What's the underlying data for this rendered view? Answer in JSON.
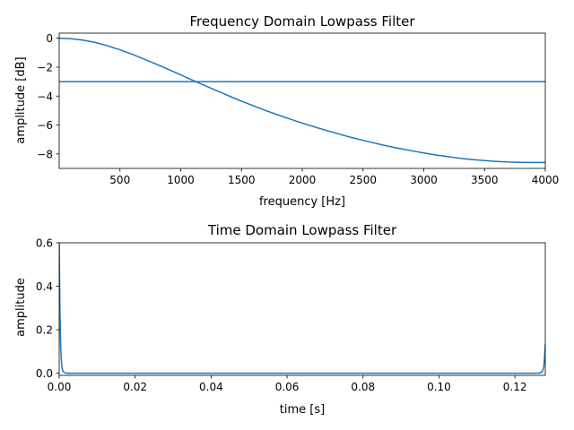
{
  "chart_data": [
    {
      "type": "line",
      "title": "Frequency Domain Lowpass Filter",
      "xlabel": "frequency [Hz]",
      "ylabel": "amplitude [dB]",
      "xlim": [
        0,
        4000
      ],
      "ylim": [
        -9.0,
        0.35
      ],
      "xticks": [
        500,
        1000,
        1500,
        2000,
        2500,
        3000,
        3500,
        4000
      ],
      "yticks": [
        0,
        -2,
        -4,
        -6,
        -8
      ],
      "ytick_labels": [
        "0",
        "−2",
        "−4",
        "−6",
        "−8"
      ],
      "grid": false,
      "series": [
        {
          "color": "#1f77b4",
          "x": [
            0,
            100,
            200,
            300,
            400,
            500,
            600,
            700,
            800,
            900,
            1000,
            1100,
            1200,
            1300,
            1400,
            1500,
            1600,
            1700,
            1800,
            1900,
            2000,
            2100,
            2200,
            2300,
            2400,
            2500,
            2600,
            2700,
            2800,
            2900,
            3000,
            3100,
            3200,
            3300,
            3400,
            3500,
            3600,
            3700,
            3800,
            3900,
            4000
          ],
          "y": [
            0,
            -0.04,
            -0.14,
            -0.3,
            -0.53,
            -0.8,
            -1.11,
            -1.45,
            -1.8,
            -2.16,
            -2.53,
            -2.91,
            -3.28,
            -3.64,
            -4.0,
            -4.35,
            -4.68,
            -5.0,
            -5.3,
            -5.59,
            -5.87,
            -6.13,
            -6.38,
            -6.62,
            -6.85,
            -7.06,
            -7.26,
            -7.45,
            -7.62,
            -7.78,
            -7.93,
            -8.07,
            -8.19,
            -8.3,
            -8.39,
            -8.46,
            -8.52,
            -8.56,
            -8.58,
            -8.59,
            -8.59
          ]
        },
        {
          "color": "#1f77b4",
          "x": [
            0,
            4000
          ],
          "y": [
            -3,
            -3
          ]
        }
      ]
    },
    {
      "type": "line",
      "title": "Time Domain Lowpass Filter",
      "xlabel": "time [s]",
      "ylabel": "amplitude",
      "xlim": [
        0,
        0.128
      ],
      "ylim": [
        -0.01,
        0.6
      ],
      "xticks": [
        0.0,
        0.02,
        0.04,
        0.06,
        0.08,
        0.1,
        0.12
      ],
      "xtick_labels": [
        "0.00",
        "0.02",
        "0.04",
        "0.06",
        "0.08",
        "0.10",
        "0.12"
      ],
      "yticks": [
        0.0,
        0.2,
        0.4,
        0.6
      ],
      "ytick_labels": [
        "0.0",
        "0.2",
        "0.4",
        "0.6"
      ],
      "grid": false,
      "series": [
        {
          "color": "#1f77b4",
          "x": [
            0,
            0.0001,
            0.0002,
            0.0004,
            0.0006,
            0.0008,
            0.001,
            0.0015,
            0.002,
            0.01,
            0.03,
            0.05,
            0.07,
            0.09,
            0.11,
            0.125,
            0.1265,
            0.127,
            0.1273,
            0.1276,
            0.1278,
            0.128
          ],
          "y": [
            0.6,
            0.45,
            0.28,
            0.12,
            0.05,
            0.02,
            0.008,
            0.002,
            0.0,
            0.0,
            0.0,
            0.0,
            0.0,
            0.0,
            0.0,
            0.0,
            0.001,
            0.004,
            0.012,
            0.03,
            0.07,
            0.135
          ]
        }
      ]
    }
  ]
}
